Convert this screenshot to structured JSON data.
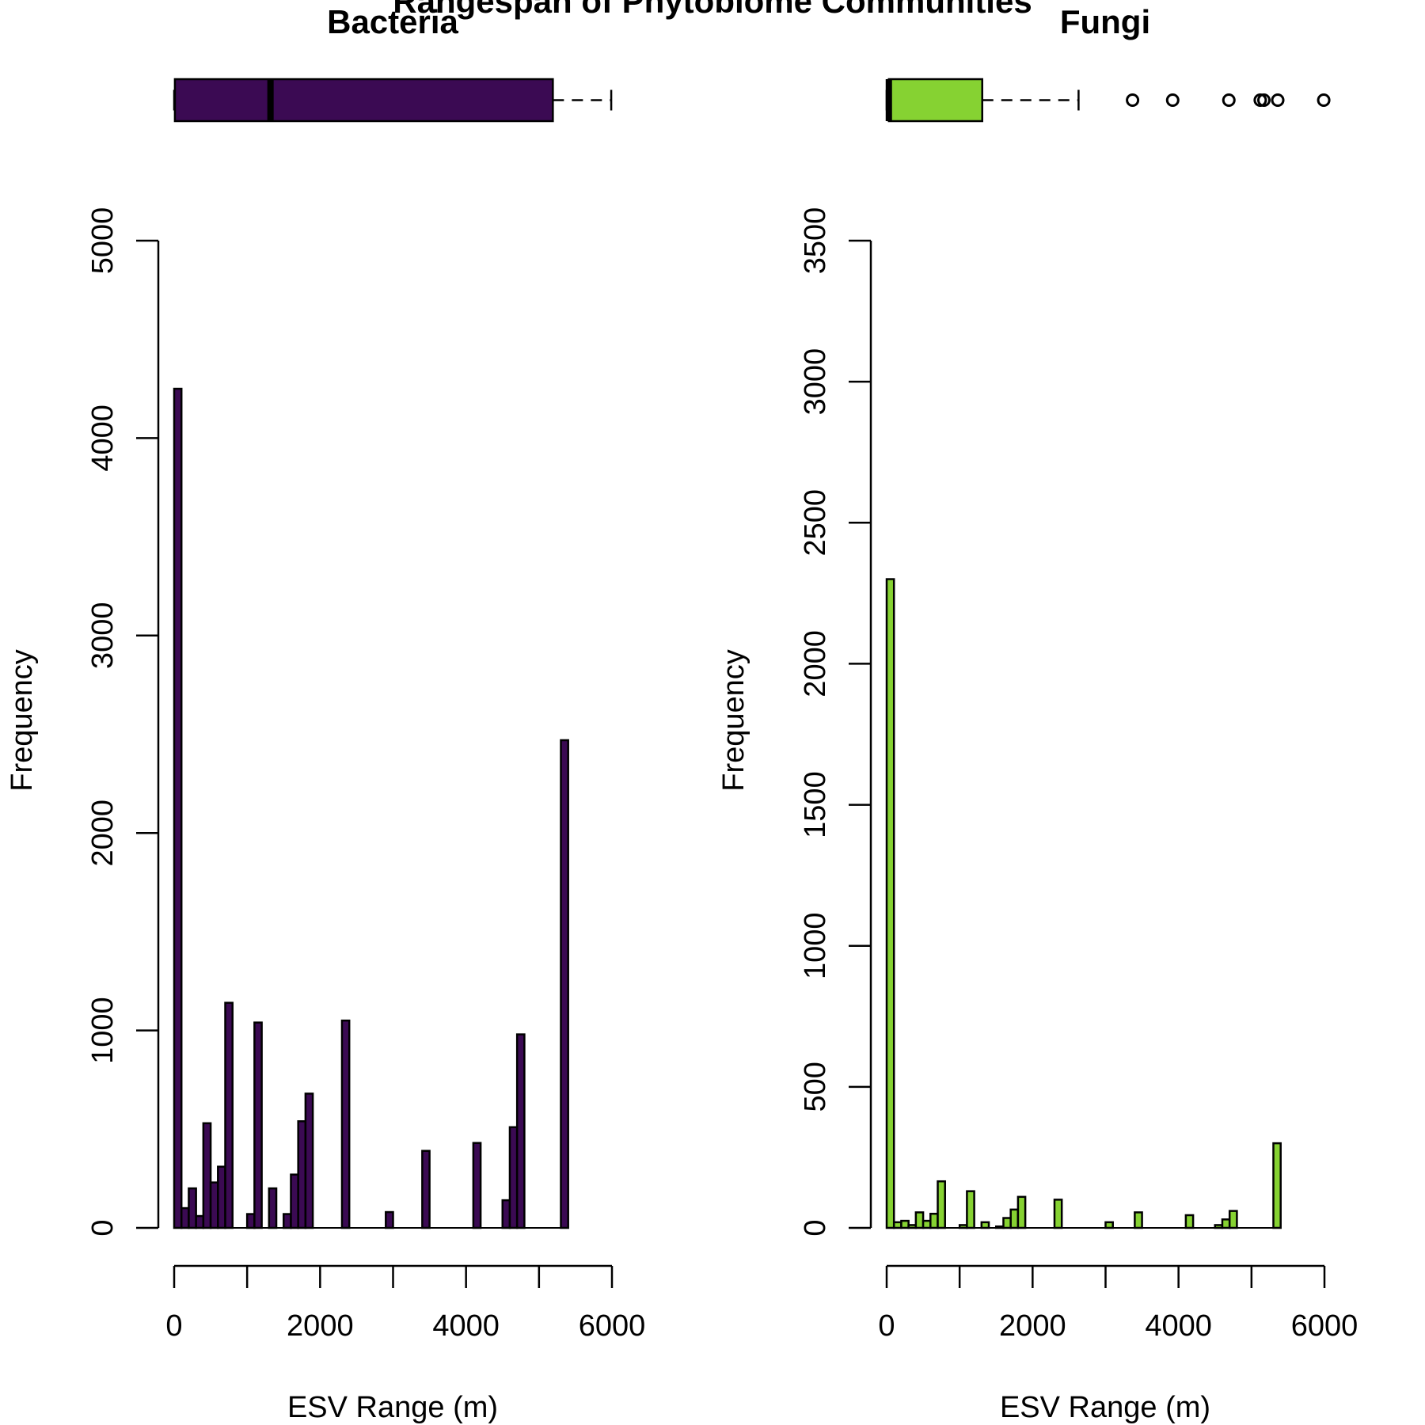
{
  "title": "Rangespan of Phytobiome Communities",
  "chart_data": [
    {
      "type": "bar",
      "panel_title": "Bacteria",
      "fill_color": "#3b0a53",
      "xlabel": "ESV Range (m)",
      "ylabel": "Frequency",
      "xlim": [
        0,
        6000
      ],
      "ylim": [
        0,
        5000
      ],
      "x_ticks": [
        0,
        1000,
        2000,
        3000,
        4000,
        5000,
        6000
      ],
      "x_tick_labels": [
        "0",
        "2000",
        "4000",
        "6000"
      ],
      "y_ticks": [
        0,
        1000,
        2000,
        3000,
        4000,
        5000
      ],
      "y_tick_labels": [
        "0",
        "1000",
        "2000",
        "3000",
        "4000",
        "5000"
      ],
      "bin_width": 100,
      "bins": [
        {
          "x": 0,
          "count": 4250
        },
        {
          "x": 100,
          "count": 100
        },
        {
          "x": 200,
          "count": 200
        },
        {
          "x": 300,
          "count": 60
        },
        {
          "x": 400,
          "count": 530
        },
        {
          "x": 500,
          "count": 230
        },
        {
          "x": 600,
          "count": 310
        },
        {
          "x": 700,
          "count": 1140
        },
        {
          "x": 1000,
          "count": 70
        },
        {
          "x": 1100,
          "count": 1040
        },
        {
          "x": 1300,
          "count": 200
        },
        {
          "x": 1500,
          "count": 70
        },
        {
          "x": 1600,
          "count": 270
        },
        {
          "x": 1700,
          "count": 540
        },
        {
          "x": 1800,
          "count": 680
        },
        {
          "x": 2300,
          "count": 1050
        },
        {
          "x": 2900,
          "count": 80
        },
        {
          "x": 3400,
          "count": 390
        },
        {
          "x": 4100,
          "count": 430
        },
        {
          "x": 4500,
          "count": 140
        },
        {
          "x": 4600,
          "count": 510
        },
        {
          "x": 4700,
          "count": 980
        },
        {
          "x": 5300,
          "count": 2470
        }
      ],
      "x_extent_max": 5400,
      "boxplot": {
        "min": 0,
        "q1": 10,
        "median": 1320,
        "q3": 5190,
        "whisker_high": 5990,
        "outliers": []
      }
    },
    {
      "type": "bar",
      "panel_title": "Fungi",
      "fill_color": "#86d232",
      "xlabel": "ESV Range (m)",
      "ylabel": "Frequency",
      "xlim": [
        0,
        6000
      ],
      "ylim": [
        0,
        3500
      ],
      "x_ticks": [
        0,
        1000,
        2000,
        3000,
        4000,
        5000,
        6000
      ],
      "x_tick_labels": [
        "0",
        "2000",
        "4000",
        "6000"
      ],
      "y_ticks": [
        0,
        500,
        1000,
        1500,
        2000,
        2500,
        3000,
        3500
      ],
      "y_tick_labels": [
        "0",
        "500",
        "1000",
        "1500",
        "2000",
        "2500",
        "3000",
        "3500"
      ],
      "bin_width": 100,
      "bins": [
        {
          "x": 0,
          "count": 2300
        },
        {
          "x": 100,
          "count": 20
        },
        {
          "x": 200,
          "count": 25
        },
        {
          "x": 300,
          "count": 10
        },
        {
          "x": 400,
          "count": 55
        },
        {
          "x": 500,
          "count": 25
        },
        {
          "x": 600,
          "count": 50
        },
        {
          "x": 700,
          "count": 165
        },
        {
          "x": 1000,
          "count": 10
        },
        {
          "x": 1100,
          "count": 130
        },
        {
          "x": 1300,
          "count": 20
        },
        {
          "x": 1500,
          "count": 5
        },
        {
          "x": 1600,
          "count": 35
        },
        {
          "x": 1700,
          "count": 65
        },
        {
          "x": 1800,
          "count": 110
        },
        {
          "x": 2300,
          "count": 100
        },
        {
          "x": 3000,
          "count": 20
        },
        {
          "x": 3400,
          "count": 55
        },
        {
          "x": 4100,
          "count": 45
        },
        {
          "x": 4500,
          "count": 10
        },
        {
          "x": 4600,
          "count": 30
        },
        {
          "x": 4700,
          "count": 60
        },
        {
          "x": 5300,
          "count": 300
        }
      ],
      "x_extent_max": 5400,
      "boxplot": {
        "min": 0,
        "q1": 30,
        "median": 30,
        "q3": 1310,
        "whisker_high": 2630,
        "outliers": [
          3370,
          3920,
          4690,
          5120,
          5170,
          5360,
          5990
        ]
      }
    }
  ]
}
